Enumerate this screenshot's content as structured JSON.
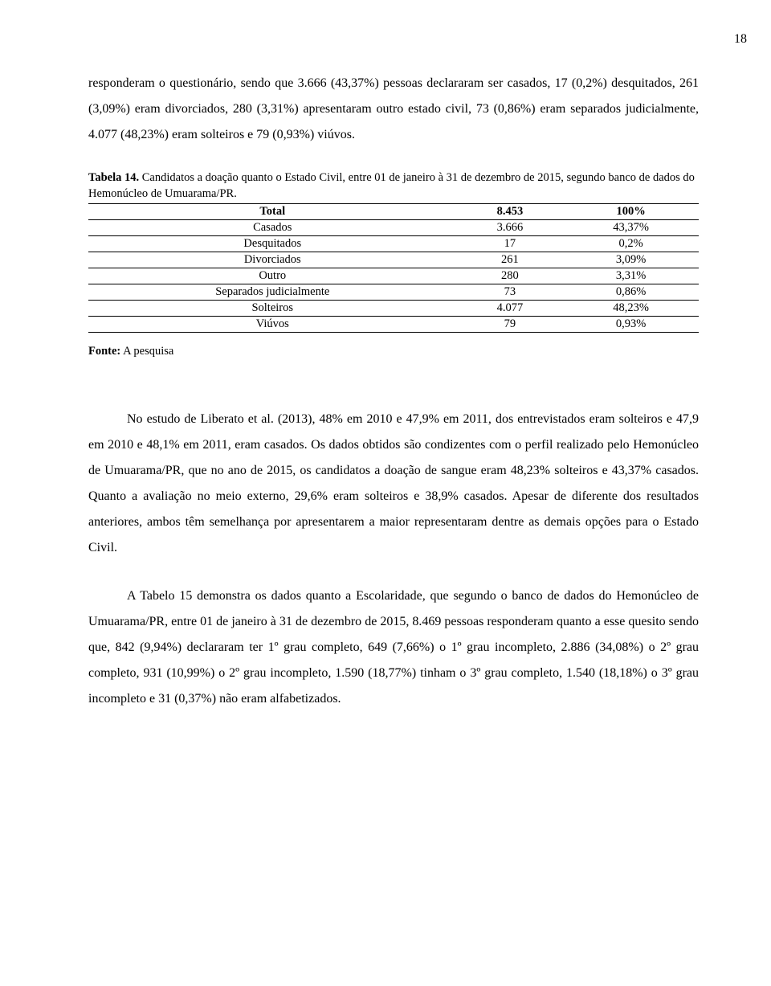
{
  "page_number": "18",
  "para1": "responderam o questionário, sendo que 3.666 (43,37%) pessoas declararam ser casados, 17 (0,2%) desquitados, 261 (3,09%) eram divorciados, 280 (3,31%) apresentaram outro estado civil, 73 (0,86%) eram separados judicialmente, 4.077 (48,23%) eram solteiros e 79 (0,93%) viúvos.",
  "table": {
    "caption_prefix": "Tabela 14.",
    "caption_rest": " Candidatos a doação quanto o Estado Civil, entre 01 de janeiro à 31 de dezembro de 2015, segundo banco de dados do Hemonúcleo de Umuarama/PR.",
    "header": {
      "c1": "Total",
      "c2": "8.453",
      "c3": "100%"
    },
    "rows": [
      {
        "c1": "Casados",
        "c2": "3.666",
        "c3": "43,37%"
      },
      {
        "c1": "Desquitados",
        "c2": "17",
        "c3": "0,2%"
      },
      {
        "c1": "Divorciados",
        "c2": "261",
        "c3": "3,09%"
      },
      {
        "c1": "Outro",
        "c2": "280",
        "c3": "3,31%"
      },
      {
        "c1": "Separados judicialmente",
        "c2": "73",
        "c3": "0,86%"
      },
      {
        "c1": "Solteiros",
        "c2": "4.077",
        "c3": "48,23%"
      },
      {
        "c1": "Viúvos",
        "c2": "79",
        "c3": "0,93%"
      }
    ],
    "source_label": "Fonte:",
    "source_rest": " A pesquisa"
  },
  "para2": "No estudo de Liberato et al. (2013), 48% em 2010 e 47,9% em 2011, dos entrevistados eram solteiros e 47,9 em 2010 e 48,1% em 2011, eram casados. Os dados obtidos são condizentes com o perfil realizado pelo Hemonúcleo de Umuarama/PR, que no ano de 2015, os candidatos a doação de sangue eram 48,23% solteiros e 43,37% casados. Quanto a avaliação no meio externo, 29,6% eram solteiros e 38,9% casados. Apesar de diferente dos resultados anteriores, ambos têm semelhança por apresentarem a maior representaram dentre as demais opções para o Estado Civil.",
  "para3": "A Tabelo 15 demonstra os dados quanto a Escolaridade, que segundo o banco de dados do Hemonúcleo de Umuarama/PR, entre 01 de janeiro à 31 de dezembro de 2015, 8.469 pessoas responderam quanto a esse quesito sendo que, 842 (9,94%) declararam ter 1º grau completo, 649 (7,66%) o 1º grau incompleto, 2.886 (34,08%) o 2º grau completo, 931 (10,99%) o 2º grau incompleto, 1.590 (18,77%) tinham o 3º grau completo, 1.540 (18,18%) o 3º grau incompleto e 31 (0,37%) não eram alfabetizados."
}
